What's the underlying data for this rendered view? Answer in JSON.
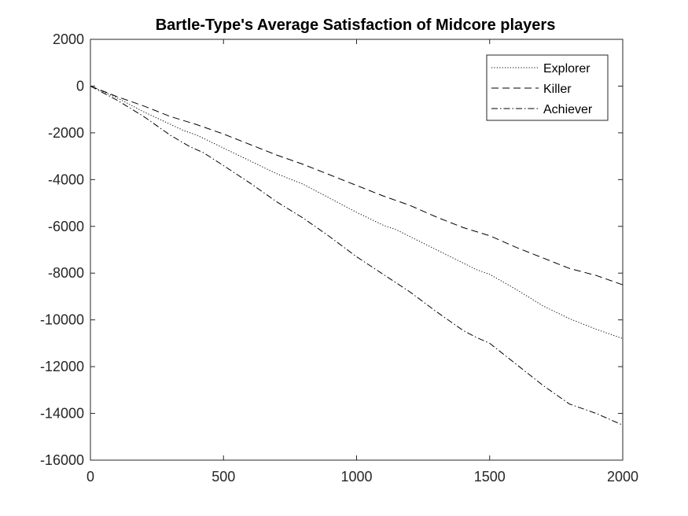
{
  "chart_data": {
    "type": "line",
    "title": "Bartle-Type's Average Satisfaction of Midcore players",
    "xlabel": "",
    "ylabel": "",
    "xlim": [
      0,
      2000
    ],
    "ylim": [
      -16000,
      2000
    ],
    "xticks": [
      0,
      500,
      1000,
      1500,
      2000
    ],
    "yticks": [
      2000,
      0,
      -2000,
      -4000,
      -6000,
      -8000,
      -10000,
      -12000,
      -14000,
      -16000
    ],
    "grid": false,
    "legend_position": "top-right",
    "series": [
      {
        "name": "Explorer",
        "dash": "dotted",
        "color": "#000000",
        "x": [
          0,
          100,
          200,
          350,
          400,
          500,
          600,
          700,
          800,
          900,
          1000,
          1100,
          1150,
          1300,
          1450,
          1500,
          1600,
          1700,
          1800,
          1900,
          2000
        ],
        "y": [
          0,
          -500,
          -1100,
          -1900,
          -2100,
          -2650,
          -3200,
          -3750,
          -4200,
          -4800,
          -5400,
          -5950,
          -6150,
          -7000,
          -7850,
          -8050,
          -8700,
          -9400,
          -9950,
          -10400,
          -10800
        ]
      },
      {
        "name": "Killer",
        "dash": "dashed",
        "color": "#000000",
        "x": [
          0,
          100,
          200,
          300,
          400,
          500,
          600,
          700,
          800,
          900,
          1000,
          1100,
          1200,
          1300,
          1400,
          1500,
          1600,
          1700,
          1800,
          1900,
          2000
        ],
        "y": [
          0,
          -450,
          -850,
          -1300,
          -1650,
          -2050,
          -2500,
          -2950,
          -3350,
          -3800,
          -4250,
          -4700,
          -5100,
          -5600,
          -6050,
          -6400,
          -6900,
          -7350,
          -7800,
          -8100,
          -8500
        ]
      },
      {
        "name": "Achiever",
        "dash": "dashdot",
        "color": "#000000",
        "x": [
          0,
          100,
          200,
          300,
          375,
          425,
          500,
          600,
          700,
          800,
          900,
          1000,
          1100,
          1200,
          1300,
          1400,
          1450,
          1500,
          1600,
          1700,
          1800,
          1900,
          2000
        ],
        "y": [
          0,
          -600,
          -1300,
          -2100,
          -2600,
          -2850,
          -3400,
          -4150,
          -4950,
          -5650,
          -6450,
          -7300,
          -8050,
          -8800,
          -9650,
          -10450,
          -10750,
          -11000,
          -11900,
          -12800,
          -13600,
          -14000,
          -14500
        ]
      }
    ]
  }
}
